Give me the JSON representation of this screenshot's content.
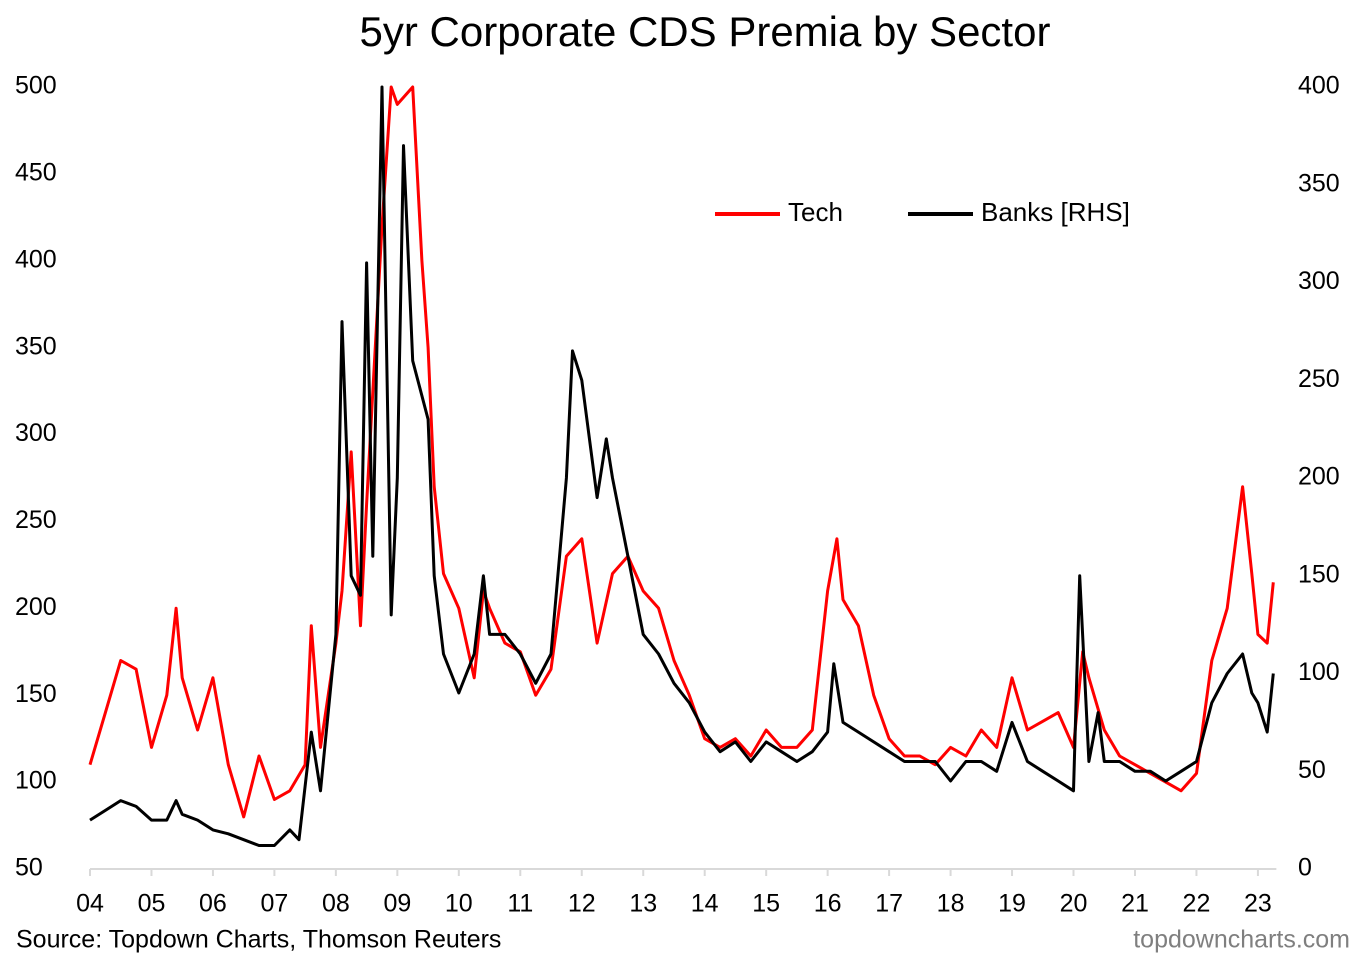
{
  "chart_data": {
    "type": "line",
    "title": "5yr Corporate CDS Premia by Sector",
    "source": "Source: Topdown Charts, Thomson Reuters",
    "watermark": "topdowncharts.com",
    "legend": "top-right",
    "xlim": [
      2004,
      2023.3
    ],
    "xticks": [
      {
        "value": 2004,
        "label": "04"
      },
      {
        "value": 2005,
        "label": "05"
      },
      {
        "value": 2006,
        "label": "06"
      },
      {
        "value": 2007,
        "label": "07"
      },
      {
        "value": 2008,
        "label": "08"
      },
      {
        "value": 2009,
        "label": "09"
      },
      {
        "value": 2010,
        "label": "10"
      },
      {
        "value": 2011,
        "label": "11"
      },
      {
        "value": 2012,
        "label": "12"
      },
      {
        "value": 2013,
        "label": "13"
      },
      {
        "value": 2014,
        "label": "14"
      },
      {
        "value": 2015,
        "label": "15"
      },
      {
        "value": 2016,
        "label": "16"
      },
      {
        "value": 2017,
        "label": "17"
      },
      {
        "value": 2018,
        "label": "18"
      },
      {
        "value": 2019,
        "label": "19"
      },
      {
        "value": 2020,
        "label": "20"
      },
      {
        "value": 2021,
        "label": "21"
      },
      {
        "value": 2022,
        "label": "22"
      },
      {
        "value": 2023,
        "label": "23"
      }
    ],
    "ylim": [
      50,
      500
    ],
    "yticks": [
      50,
      100,
      150,
      200,
      250,
      300,
      350,
      400,
      450,
      500
    ],
    "y2lim": [
      0,
      400
    ],
    "y2ticks": [
      0,
      50,
      100,
      150,
      200,
      250,
      300,
      350,
      400
    ],
    "series": [
      {
        "name": "Tech",
        "color": "#ff0000",
        "x": [
          2004.0,
          2004.25,
          2004.5,
          2004.75,
          2005.0,
          2005.25,
          2005.4,
          2005.5,
          2005.75,
          2006.0,
          2006.25,
          2006.5,
          2006.75,
          2007.0,
          2007.25,
          2007.5,
          2007.6,
          2007.75,
          2008.0,
          2008.1,
          2008.25,
          2008.4,
          2008.5,
          2008.75,
          2008.9,
          2009.0,
          2009.25,
          2009.4,
          2009.5,
          2009.6,
          2009.75,
          2010.0,
          2010.25,
          2010.4,
          2010.5,
          2010.75,
          2011.0,
          2011.25,
          2011.5,
          2011.75,
          2012.0,
          2012.25,
          2012.5,
          2012.75,
          2013.0,
          2013.25,
          2013.5,
          2013.75,
          2014.0,
          2014.25,
          2014.5,
          2014.75,
          2015.0,
          2015.25,
          2015.5,
          2015.75,
          2016.0,
          2016.15,
          2016.25,
          2016.5,
          2016.75,
          2017.0,
          2017.25,
          2017.5,
          2017.75,
          2018.0,
          2018.25,
          2018.5,
          2018.75,
          2019.0,
          2019.25,
          2019.5,
          2019.75,
          2020.0,
          2020.15,
          2020.25,
          2020.5,
          2020.75,
          2021.0,
          2021.25,
          2021.5,
          2021.75,
          2022.0,
          2022.25,
          2022.5,
          2022.75,
          2022.9,
          2023.0,
          2023.15,
          2023.25
        ],
        "values": [
          110,
          140,
          170,
          165,
          120,
          150,
          200,
          160,
          130,
          160,
          110,
          80,
          115,
          90,
          95,
          110,
          190,
          120,
          180,
          210,
          290,
          190,
          260,
          420,
          500,
          490,
          500,
          400,
          350,
          270,
          220,
          200,
          160,
          210,
          200,
          180,
          175,
          150,
          165,
          230,
          240,
          180,
          220,
          230,
          210,
          200,
          170,
          150,
          125,
          120,
          125,
          115,
          130,
          120,
          120,
          130,
          210,
          240,
          205,
          190,
          150,
          125,
          115,
          115,
          110,
          120,
          115,
          130,
          120,
          160,
          130,
          135,
          140,
          120,
          175,
          160,
          130,
          115,
          110,
          105,
          100,
          95,
          105,
          170,
          200,
          270,
          220,
          185,
          180,
          215
        ]
      },
      {
        "name": "Banks [RHS]",
        "color": "#000000",
        "axis": "y2",
        "x": [
          2004.0,
          2004.25,
          2004.5,
          2004.75,
          2005.0,
          2005.25,
          2005.4,
          2005.5,
          2005.75,
          2006.0,
          2006.25,
          2006.5,
          2006.75,
          2007.0,
          2007.25,
          2007.4,
          2007.6,
          2007.75,
          2008.0,
          2008.1,
          2008.25,
          2008.4,
          2008.5,
          2008.6,
          2008.75,
          2008.9,
          2009.0,
          2009.1,
          2009.25,
          2009.5,
          2009.6,
          2009.75,
          2010.0,
          2010.25,
          2010.4,
          2010.5,
          2010.75,
          2011.0,
          2011.25,
          2011.5,
          2011.75,
          2011.85,
          2012.0,
          2012.25,
          2012.4,
          2012.5,
          2012.75,
          2013.0,
          2013.25,
          2013.5,
          2013.75,
          2014.0,
          2014.25,
          2014.5,
          2014.75,
          2015.0,
          2015.25,
          2015.5,
          2015.75,
          2016.0,
          2016.1,
          2016.25,
          2016.5,
          2016.75,
          2017.0,
          2017.25,
          2017.5,
          2017.75,
          2018.0,
          2018.25,
          2018.5,
          2018.75,
          2019.0,
          2019.25,
          2019.5,
          2019.75,
          2020.0,
          2020.1,
          2020.25,
          2020.4,
          2020.5,
          2020.75,
          2021.0,
          2021.25,
          2021.5,
          2021.75,
          2022.0,
          2022.25,
          2022.5,
          2022.75,
          2022.9,
          2023.0,
          2023.15,
          2023.25
        ],
        "values": [
          25,
          30,
          35,
          32,
          25,
          25,
          35,
          28,
          25,
          20,
          18,
          15,
          12,
          12,
          20,
          15,
          70,
          40,
          120,
          280,
          150,
          140,
          310,
          160,
          400,
          130,
          200,
          370,
          260,
          230,
          150,
          110,
          90,
          110,
          150,
          120,
          120,
          110,
          95,
          110,
          200,
          265,
          250,
          190,
          220,
          200,
          160,
          120,
          110,
          95,
          85,
          70,
          60,
          65,
          55,
          65,
          60,
          55,
          60,
          70,
          105,
          75,
          70,
          65,
          60,
          55,
          55,
          55,
          45,
          55,
          55,
          50,
          75,
          55,
          50,
          45,
          40,
          150,
          55,
          80,
          55,
          55,
          50,
          50,
          45,
          50,
          55,
          85,
          100,
          110,
          90,
          85,
          70,
          100
        ]
      }
    ]
  }
}
